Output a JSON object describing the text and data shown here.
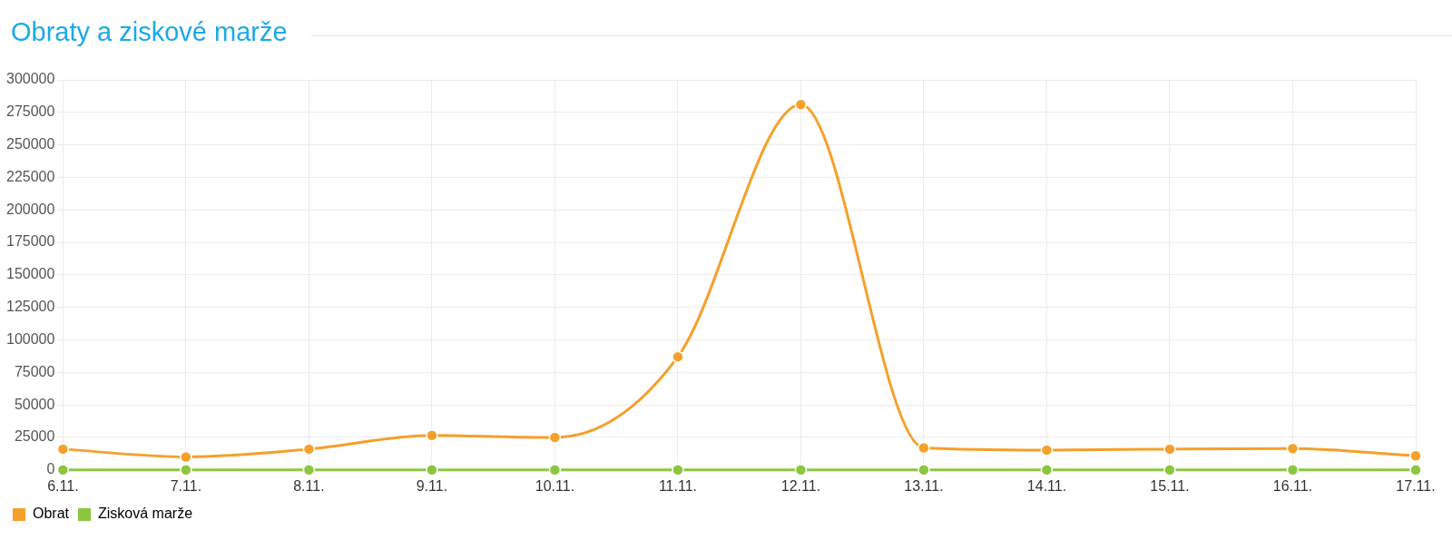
{
  "chart_data": {
    "type": "line",
    "title": "Obraty a ziskové marže",
    "categories": [
      "6.11.",
      "7.11.",
      "8.11.",
      "9.11.",
      "10.11.",
      "11.11.",
      "12.11.",
      "13.11.",
      "14.11.",
      "15.11.",
      "16.11.",
      "17.11."
    ],
    "series": [
      {
        "name": "Obrat",
        "color": "#f5a02a",
        "values": [
          16000,
          10000,
          16000,
          26500,
          25000,
          87000,
          281000,
          17000,
          15300,
          16000,
          16400,
          10800
        ]
      },
      {
        "name": "Zisková marže",
        "color": "#8cc63f",
        "values": [
          0,
          0,
          0,
          0,
          0,
          0,
          0,
          0,
          0,
          0,
          0,
          0
        ]
      }
    ],
    "ylim": [
      0,
      300000
    ],
    "yticks": [
      0,
      25000,
      50000,
      75000,
      100000,
      125000,
      150000,
      175000,
      200000,
      225000,
      250000,
      275000,
      300000
    ],
    "grid": true,
    "legend": "bottom left",
    "marker": "circle",
    "line_style": "solid"
  }
}
